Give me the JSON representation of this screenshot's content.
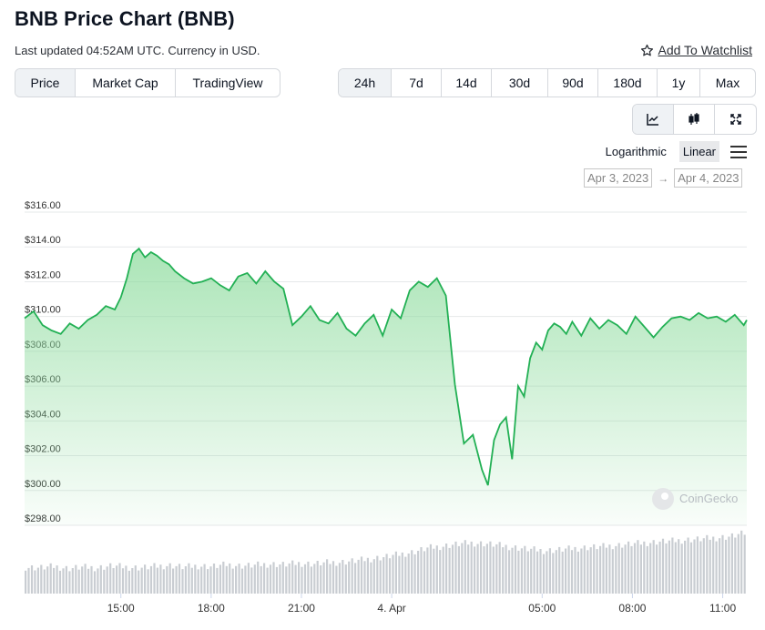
{
  "header": {
    "title": "BNB Price Chart (BNB)",
    "updated": "Last updated 04:52AM UTC. Currency in USD.",
    "watchlist_label": "Add To Watchlist"
  },
  "chart_type_tabs": [
    {
      "label": "Price",
      "active": true
    },
    {
      "label": "Market Cap",
      "active": false
    },
    {
      "label": "TradingView",
      "active": false
    }
  ],
  "range_tabs": [
    {
      "label": "24h",
      "active": true
    },
    {
      "label": "7d",
      "active": false
    },
    {
      "label": "14d",
      "active": false
    },
    {
      "label": "30d",
      "active": false
    },
    {
      "label": "90d",
      "active": false
    },
    {
      "label": "180d",
      "active": false
    },
    {
      "label": "1y",
      "active": false
    },
    {
      "label": "Max",
      "active": false
    }
  ],
  "view_buttons": [
    {
      "icon": "line-chart-icon",
      "active": true
    },
    {
      "icon": "candlestick-icon",
      "active": false
    },
    {
      "icon": "fullscreen-icon",
      "active": false
    }
  ],
  "scale": {
    "logarithmic": "Logarithmic",
    "linear": "Linear",
    "active": "linear"
  },
  "date_range": {
    "from": "Apr 3, 2023",
    "to": "Apr 4, 2023",
    "arrow": "→"
  },
  "watermark": "CoinGecko",
  "colors": {
    "line": "#22b054",
    "fill_top": "#8fdc9f",
    "volume": "#c9cdd2",
    "grid": "#e6e8ea"
  },
  "chart_data": {
    "type": "area",
    "y_axis": {
      "min": 298,
      "max": 316,
      "ticks": [
        "$316.00",
        "$314.00",
        "$312.00",
        "$310.00",
        "$308.00",
        "$306.00",
        "$304.00",
        "$302.00",
        "$300.00",
        "$298.00"
      ],
      "tick_values": [
        316,
        314,
        312,
        310,
        308,
        306,
        304,
        302,
        300,
        298
      ]
    },
    "x_axis": {
      "ticks": [
        "15:00",
        "18:00",
        "21:00",
        "4. Apr",
        "05:00",
        "08:00",
        "11:00"
      ],
      "tick_hours": [
        3.2,
        6.2,
        9.2,
        12.2,
        17.2,
        20.2,
        23.2
      ]
    },
    "grid": true,
    "series": [
      {
        "x": [
          0,
          0.3,
          0.6,
          0.9,
          1.2,
          1.5,
          1.8,
          2.1,
          2.4,
          2.7,
          3.0,
          3.2,
          3.4,
          3.6,
          3.8,
          4.0,
          4.2,
          4.4,
          4.6,
          4.8,
          5.0,
          5.3,
          5.6,
          5.9,
          6.2,
          6.5,
          6.8,
          7.1,
          7.4,
          7.7,
          8.0,
          8.3,
          8.6,
          8.9,
          9.2,
          9.5,
          9.8,
          10.1,
          10.4,
          10.7,
          11.0,
          11.3,
          11.6,
          11.9,
          12.2,
          12.5,
          12.8,
          13.1,
          13.4,
          13.7,
          14.0,
          14.3,
          14.6,
          14.9,
          15.2,
          15.4,
          15.6,
          15.8,
          16.0,
          16.2,
          16.4,
          16.6,
          16.8,
          17.0,
          17.2,
          17.4,
          17.6,
          17.8,
          18.0,
          18.2,
          18.5,
          18.8,
          19.1,
          19.4,
          19.7,
          20.0,
          20.3,
          20.6,
          20.9,
          21.2,
          21.5,
          21.8,
          22.1,
          22.4,
          22.7,
          23.0,
          23.3,
          23.6,
          23.9,
          24.0
        ],
        "values": [
          309.9,
          310.3,
          309.5,
          309.2,
          309.0,
          309.6,
          309.3,
          309.8,
          310.1,
          310.6,
          310.4,
          311.1,
          312.2,
          313.6,
          313.9,
          313.4,
          313.7,
          313.5,
          313.2,
          313.0,
          312.6,
          312.2,
          311.9,
          312.0,
          312.2,
          311.8,
          311.5,
          312.3,
          312.5,
          311.9,
          312.6,
          312.0,
          311.6,
          309.5,
          310.0,
          310.6,
          309.8,
          309.6,
          310.2,
          309.3,
          308.9,
          309.6,
          310.1,
          308.9,
          310.4,
          309.9,
          311.5,
          312.0,
          311.7,
          312.2,
          311.2,
          306.1,
          302.7,
          303.2,
          301.2,
          300.3,
          302.9,
          303.8,
          304.2,
          301.8,
          306.0,
          305.4,
          307.6,
          308.5,
          308.1,
          309.2,
          309.6,
          309.4,
          309.0,
          309.7,
          308.9,
          309.9,
          309.3,
          309.8,
          309.5,
          309.0,
          310.0,
          309.4,
          308.8,
          309.4,
          309.9,
          310.0,
          309.8,
          310.2,
          309.9,
          310.0,
          309.7,
          310.1,
          309.5,
          309.8
        ]
      }
    ],
    "volume": {
      "note": "relative bar heights 0-1",
      "values": [
        0.42,
        0.41,
        0.43,
        0.4,
        0.42,
        0.41,
        0.44,
        0.42,
        0.41,
        0.43,
        0.45,
        0.42,
        0.44,
        0.43,
        0.46,
        0.44,
        0.45,
        0.47,
        0.46,
        0.48,
        0.47,
        0.49,
        0.5,
        0.52,
        0.55,
        0.58,
        0.62,
        0.66,
        0.72,
        0.75,
        0.78,
        0.8,
        0.79,
        0.76,
        0.73,
        0.7,
        0.68,
        0.69,
        0.71,
        0.73,
        0.74,
        0.76,
        0.78,
        0.8,
        0.82,
        0.83,
        0.85,
        0.86,
        0.88,
        0.9,
        0.95
      ]
    }
  }
}
